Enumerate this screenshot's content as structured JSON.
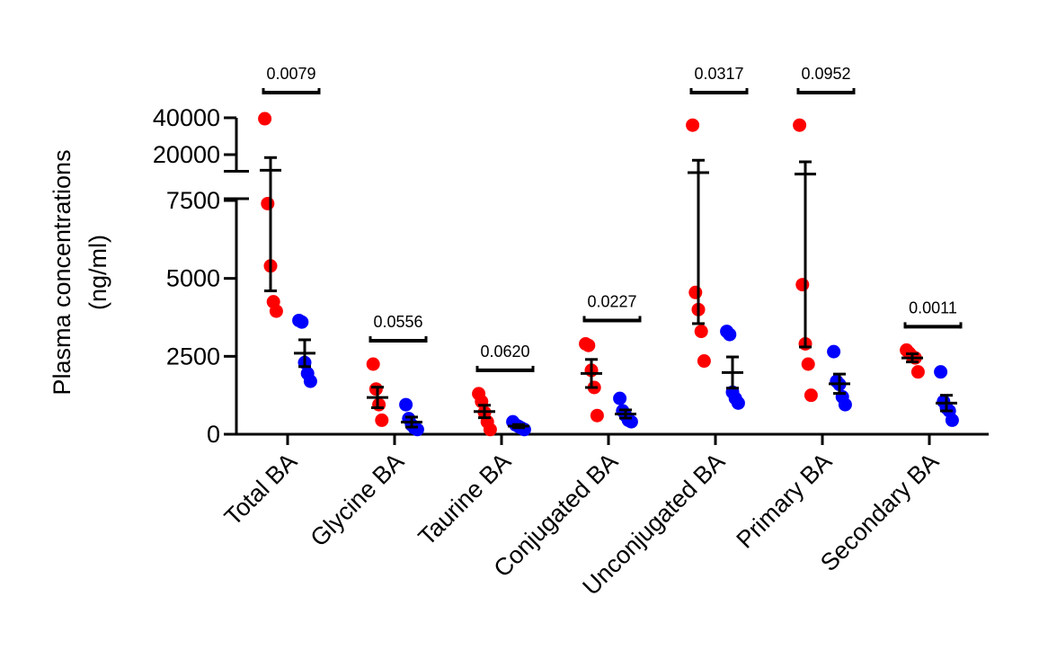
{
  "chart_data": {
    "type": "scatter",
    "ylabel_line1": "Plasma concentrations",
    "ylabel_line2": "(ng/ml)",
    "y_axis": {
      "lower_segment": {
        "range": [
          0,
          7500
        ],
        "ticks": [
          0,
          2500,
          5000,
          7500
        ],
        "tick_labels": [
          "0",
          "2500",
          "5000",
          "7500"
        ]
      },
      "upper_segment": {
        "range": [
          10000,
          40000
        ],
        "ticks": [
          20000,
          40000
        ],
        "tick_labels": [
          "20000",
          "40000"
        ]
      },
      "axis_break": true
    },
    "categories": [
      "Total BA",
      "Glycine BA",
      "Taurine BA",
      "Conjugated BA",
      "Unconjugated BA",
      "Primary BA",
      "Secondary BA"
    ],
    "group_colors": [
      "#ff0000",
      "#0000ff"
    ],
    "groups": [
      {
        "color": "#ff0000",
        "points": [
          [
            39500,
            7400,
            5400,
            4250,
            3950
          ],
          [
            2250,
            1450,
            950,
            450
          ],
          [
            1300,
            1050,
            700,
            400,
            150
          ],
          [
            2900,
            2850,
            2050,
            1500,
            600
          ],
          [
            36000,
            4550,
            4000,
            3300,
            2350
          ],
          [
            36000,
            4800,
            2900,
            2250,
            1250
          ],
          [
            2700,
            2600,
            2500,
            2450,
            2000
          ]
        ],
        "mean": [
          11500,
          1180,
          730,
          1950,
          10250,
          9450,
          2450
        ],
        "sem": [
          6900,
          330,
          200,
          450,
          6700,
          6650,
          130
        ]
      },
      {
        "color": "#0000ff",
        "points": [
          [
            3650,
            3600,
            2300,
            1950,
            1700
          ],
          [
            950,
            500,
            300,
            200,
            150
          ],
          [
            400,
            300,
            250,
            200,
            150
          ],
          [
            1150,
            750,
            600,
            450,
            400
          ],
          [
            3300,
            3200,
            1350,
            1150,
            1000
          ],
          [
            2650,
            1700,
            1600,
            1200,
            950
          ],
          [
            2000,
            1050,
            850,
            750,
            450
          ]
        ],
        "mean": [
          2600,
          390,
          260,
          650,
          1980,
          1620,
          1000
        ],
        "sem": [
          430,
          160,
          50,
          130,
          500,
          310,
          250
        ]
      }
    ],
    "p_values": [
      "0.0079",
      "0.0556",
      "0.0620",
      "0.0227",
      "0.0317",
      "0.0952",
      "0.0011"
    ]
  }
}
